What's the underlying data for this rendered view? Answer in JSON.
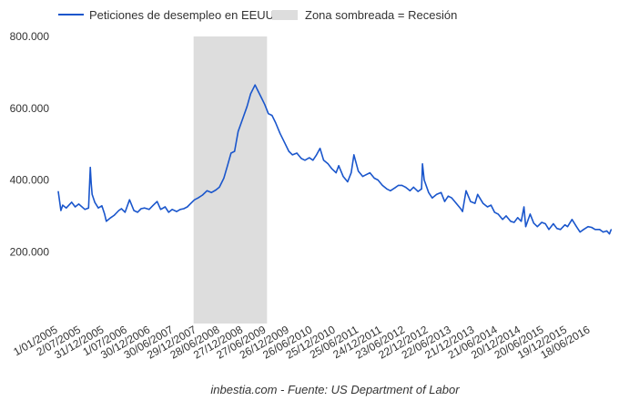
{
  "chart_data": {
    "type": "line",
    "legend": {
      "placement": "top-left",
      "items": [
        {
          "label": "Peticiones de desempleo en EEUU",
          "kind": "line",
          "color": "#1a56cc"
        },
        {
          "label": "Zona sombreada = Recesión",
          "kind": "box",
          "color": "#dddddd"
        }
      ]
    },
    "y_ticks": [
      "200.000",
      "400.000",
      "600.000",
      "800.000"
    ],
    "y_tick_values": [
      200000,
      400000,
      600000,
      800000
    ],
    "ylim": [
      0,
      800000
    ],
    "x_range": [
      "2005-01-01",
      "2016-11-30"
    ],
    "x_ticks": [
      "1/01/2005",
      "2/07/2005",
      "31/12/2005",
      "1/07/2006",
      "30/12/2006",
      "30/06/2007",
      "29/12/2007",
      "28/06/2008",
      "27/12/2008",
      "27/06/2009",
      "26/12/2009",
      "26/06/2010",
      "25/12/2010",
      "25/06/2011",
      "24/12/2011",
      "23/06/2012",
      "22/12/2012",
      "22/06/2013",
      "21/12/2013",
      "21/06/2014",
      "20/12/2014",
      "20/06/2015",
      "19/12/2015",
      "18/06/2016"
    ],
    "x_tick_dates": [
      "2005-01-01",
      "2005-07-02",
      "2005-12-31",
      "2006-07-01",
      "2006-12-30",
      "2007-06-30",
      "2007-12-29",
      "2008-06-28",
      "2008-12-27",
      "2009-06-27",
      "2009-12-26",
      "2010-06-26",
      "2010-12-25",
      "2011-06-25",
      "2011-12-24",
      "2012-06-23",
      "2012-12-22",
      "2013-06-22",
      "2013-12-21",
      "2014-06-21",
      "2014-12-20",
      "2015-06-20",
      "2015-12-19",
      "2016-06-18"
    ],
    "recession": {
      "start": "2007-12-01",
      "end": "2009-06-30",
      "color": "#dddddd"
    },
    "grid": false,
    "series": [
      {
        "name": "Peticiones de desempleo en EEUU",
        "color": "#1a56cc",
        "points": [
          [
            "2005-01-01",
            368000
          ],
          [
            "2005-01-22",
            315000
          ],
          [
            "2005-02-05",
            330000
          ],
          [
            "2005-03-05",
            322000
          ],
          [
            "2005-04-16",
            338000
          ],
          [
            "2005-05-14",
            325000
          ],
          [
            "2005-06-11",
            333000
          ],
          [
            "2005-07-30",
            318000
          ],
          [
            "2005-08-27",
            322000
          ],
          [
            "2005-09-10",
            435000
          ],
          [
            "2005-09-17",
            390000
          ],
          [
            "2005-09-24",
            360000
          ],
          [
            "2005-10-15",
            338000
          ],
          [
            "2005-11-12",
            322000
          ],
          [
            "2005-12-10",
            328000
          ],
          [
            "2005-12-31",
            305000
          ],
          [
            "2006-01-14",
            285000
          ],
          [
            "2006-02-18",
            295000
          ],
          [
            "2006-03-18",
            302000
          ],
          [
            "2006-04-22",
            315000
          ],
          [
            "2006-05-13",
            320000
          ],
          [
            "2006-06-10",
            310000
          ],
          [
            "2006-07-15",
            345000
          ],
          [
            "2006-08-19",
            315000
          ],
          [
            "2006-09-16",
            310000
          ],
          [
            "2006-10-14",
            320000
          ],
          [
            "2006-11-11",
            322000
          ],
          [
            "2006-12-16",
            318000
          ],
          [
            "2007-01-13",
            328000
          ],
          [
            "2007-02-17",
            340000
          ],
          [
            "2007-03-17",
            318000
          ],
          [
            "2007-04-21",
            325000
          ],
          [
            "2007-05-19",
            310000
          ],
          [
            "2007-06-16",
            318000
          ],
          [
            "2007-07-21",
            312000
          ],
          [
            "2007-08-18",
            318000
          ],
          [
            "2007-09-15",
            320000
          ],
          [
            "2007-10-13",
            325000
          ],
          [
            "2007-11-10",
            335000
          ],
          [
            "2007-12-08",
            345000
          ],
          [
            "2008-01-05",
            350000
          ],
          [
            "2008-02-09",
            358000
          ],
          [
            "2008-03-15",
            370000
          ],
          [
            "2008-04-19",
            365000
          ],
          [
            "2008-05-24",
            372000
          ],
          [
            "2008-06-21",
            380000
          ],
          [
            "2008-07-26",
            405000
          ],
          [
            "2008-08-23",
            440000
          ],
          [
            "2008-09-20",
            475000
          ],
          [
            "2008-10-18",
            480000
          ],
          [
            "2008-11-15",
            535000
          ],
          [
            "2008-12-20",
            570000
          ],
          [
            "2009-01-24",
            605000
          ],
          [
            "2009-02-21",
            640000
          ],
          [
            "2009-03-28",
            665000
          ],
          [
            "2009-04-18",
            650000
          ],
          [
            "2009-05-16",
            630000
          ],
          [
            "2009-06-13",
            610000
          ],
          [
            "2009-07-11",
            585000
          ],
          [
            "2009-08-08",
            580000
          ],
          [
            "2009-09-05",
            560000
          ],
          [
            "2009-10-10",
            530000
          ],
          [
            "2009-11-14",
            505000
          ],
          [
            "2009-12-19",
            480000
          ],
          [
            "2010-01-16",
            470000
          ],
          [
            "2010-02-20",
            475000
          ],
          [
            "2010-03-27",
            460000
          ],
          [
            "2010-04-24",
            455000
          ],
          [
            "2010-05-29",
            462000
          ],
          [
            "2010-06-26",
            455000
          ],
          [
            "2010-07-24",
            470000
          ],
          [
            "2010-08-21",
            488000
          ],
          [
            "2010-09-18",
            455000
          ],
          [
            "2010-10-23",
            445000
          ],
          [
            "2010-11-20",
            432000
          ],
          [
            "2010-12-25",
            420000
          ],
          [
            "2011-01-15",
            440000
          ],
          [
            "2011-02-19",
            410000
          ],
          [
            "2011-03-26",
            395000
          ],
          [
            "2011-04-23",
            420000
          ],
          [
            "2011-05-14",
            470000
          ],
          [
            "2011-06-18",
            425000
          ],
          [
            "2011-07-23",
            410000
          ],
          [
            "2011-08-20",
            415000
          ],
          [
            "2011-09-17",
            420000
          ],
          [
            "2011-10-22",
            405000
          ],
          [
            "2011-11-19",
            400000
          ],
          [
            "2011-12-24",
            385000
          ],
          [
            "2012-01-28",
            375000
          ],
          [
            "2012-02-25",
            370000
          ],
          [
            "2012-03-31",
            378000
          ],
          [
            "2012-04-28",
            385000
          ],
          [
            "2012-05-26",
            385000
          ],
          [
            "2012-06-23",
            380000
          ],
          [
            "2012-07-28",
            370000
          ],
          [
            "2012-08-25",
            380000
          ],
          [
            "2012-09-29",
            368000
          ],
          [
            "2012-10-27",
            375000
          ],
          [
            "2012-11-03",
            445000
          ],
          [
            "2012-11-17",
            400000
          ],
          [
            "2012-12-22",
            365000
          ],
          [
            "2013-01-19",
            350000
          ],
          [
            "2013-02-23",
            360000
          ],
          [
            "2013-03-30",
            365000
          ],
          [
            "2013-04-27",
            340000
          ],
          [
            "2013-05-25",
            355000
          ],
          [
            "2013-06-22",
            350000
          ],
          [
            "2013-07-27",
            335000
          ],
          [
            "2013-08-31",
            320000
          ],
          [
            "2013-09-14",
            312000
          ],
          [
            "2013-10-12",
            370000
          ],
          [
            "2013-11-16",
            340000
          ],
          [
            "2013-12-21",
            335000
          ],
          [
            "2014-01-11",
            360000
          ],
          [
            "2014-02-22",
            335000
          ],
          [
            "2014-03-29",
            325000
          ],
          [
            "2014-04-26",
            330000
          ],
          [
            "2014-05-24",
            310000
          ],
          [
            "2014-06-21",
            305000
          ],
          [
            "2014-07-26",
            290000
          ],
          [
            "2014-08-23",
            300000
          ],
          [
            "2014-09-27",
            285000
          ],
          [
            "2014-10-25",
            282000
          ],
          [
            "2014-11-22",
            295000
          ],
          [
            "2014-12-20",
            285000
          ],
          [
            "2015-01-10",
            325000
          ],
          [
            "2015-01-24",
            270000
          ],
          [
            "2015-02-28",
            305000
          ],
          [
            "2015-03-28",
            280000
          ],
          [
            "2015-04-25",
            270000
          ],
          [
            "2015-05-30",
            282000
          ],
          [
            "2015-06-27",
            278000
          ],
          [
            "2015-07-25",
            262000
          ],
          [
            "2015-08-29",
            278000
          ],
          [
            "2015-09-26",
            265000
          ],
          [
            "2015-10-24",
            262000
          ],
          [
            "2015-11-28",
            275000
          ],
          [
            "2015-12-19",
            270000
          ],
          [
            "2016-01-23",
            290000
          ],
          [
            "2016-02-27",
            270000
          ],
          [
            "2016-03-26",
            255000
          ],
          [
            "2016-04-23",
            262000
          ],
          [
            "2016-05-28",
            270000
          ],
          [
            "2016-06-25",
            268000
          ],
          [
            "2016-07-23",
            262000
          ],
          [
            "2016-08-27",
            262000
          ],
          [
            "2016-09-24",
            255000
          ],
          [
            "2016-10-22",
            258000
          ],
          [
            "2016-11-12",
            250000
          ],
          [
            "2016-11-26",
            262000
          ]
        ]
      }
    ]
  },
  "footer": {
    "source": "inbestia.com - Fuente: US Department of Labor"
  }
}
